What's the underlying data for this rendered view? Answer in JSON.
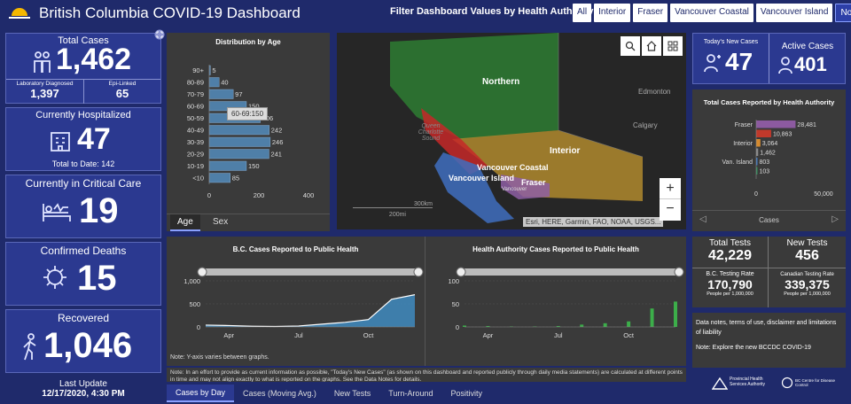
{
  "header": {
    "title": "British Columbia COVID-19 Dashboard",
    "filter_label": "Filter Dashboard Values by Health Authority:",
    "filters": [
      "All",
      "Interior",
      "Fraser",
      "Vancouver Coastal",
      "Vancouver Island",
      "Northern"
    ]
  },
  "total_cases": {
    "label": "Total Cases",
    "value": "1,462",
    "lab_label": "Laboratory Diagnosed",
    "lab_value": "1,397",
    "epi_label": "Epi-Linked",
    "epi_value": "65"
  },
  "hospitalized": {
    "label": "Currently Hospitalized",
    "value": "47",
    "sub": "Total to Date: 142"
  },
  "critical": {
    "label": "Currently in Critical Care",
    "value": "19"
  },
  "deaths": {
    "label": "Confirmed Deaths",
    "value": "15"
  },
  "recovered": {
    "label": "Recovered",
    "value": "1,046"
  },
  "update": {
    "label": "Last Update",
    "value": "12/17/2020, 4:30 PM"
  },
  "age_chart": {
    "title": "Distribution by Age",
    "tooltip": "60-69:150",
    "tabs": [
      "Age",
      "Sex"
    ],
    "chart_data": {
      "type": "bar",
      "categories": [
        "90+",
        "80-89",
        "70-79",
        "60-69",
        "50-59",
        "40-49",
        "30-39",
        "20-29",
        "10-19",
        "<10"
      ],
      "values": [
        5,
        40,
        97,
        150,
        206,
        242,
        246,
        241,
        150,
        85
      ],
      "xlim": [
        0,
        400
      ],
      "xticks": [
        "0",
        "200",
        "400"
      ]
    }
  },
  "map": {
    "labels": [
      "Northern",
      "Interior",
      "Vancouver Coastal",
      "Vancouver Island",
      "Fraser",
      "Edmonton",
      "Calgary",
      "Queen Charlotte Sound",
      "Vancouver"
    ],
    "scale": [
      "300km",
      "200mi"
    ],
    "attribution": "Esri, HERE, Garmin, FAO, NOAA, USGS..."
  },
  "new_cases": {
    "label": "Today's New Cases",
    "value": "47"
  },
  "active": {
    "label": "Active Cases",
    "value": "401"
  },
  "ha_chart": {
    "title": "Total Cases Reported by Health Authority",
    "footer": "Cases",
    "chart_data": {
      "type": "bar",
      "categories": [
        "Fraser",
        "",
        "Interior",
        "",
        "Van. Island",
        ""
      ],
      "values": [
        28481,
        10863,
        3064,
        1462,
        803,
        103
      ],
      "labels": [
        "28,481",
        "10,863",
        "3,064",
        "1,462",
        "803",
        "103"
      ],
      "colors": [
        "#8c5aa0",
        "#c0392b",
        "#d68a2e",
        "#8a8a8a",
        "#3b78c4",
        "#2e8b57"
      ],
      "xlim": [
        0,
        50000
      ],
      "xticks": [
        "0",
        "50,000"
      ]
    }
  },
  "tests": {
    "total_label": "Total Tests",
    "total_value": "42,229",
    "new_label": "New Tests",
    "new_value": "456",
    "bc_rate_label": "B.C. Testing Rate",
    "bc_rate_value": "170,790",
    "bc_rate_unit": "People per 1,000,000",
    "can_rate_label": "Canadian Testing Rate",
    "can_rate_value": "339,375",
    "can_rate_unit": "People per 1,000,000"
  },
  "notes": {
    "line1": "Data notes, terms of use, disclaimer and limitations of liability",
    "line2": "Note: Explore the new BCCDC COVID-19"
  },
  "bc_cases": {
    "title": "B.C. Cases Reported to Public Health",
    "yticks": [
      "1,000",
      "500",
      "0"
    ],
    "xticks": [
      "Apr",
      "Jul",
      "Oct"
    ],
    "chart_data": {
      "type": "area",
      "x": [
        "Mar",
        "Apr",
        "May",
        "Jun",
        "Jul",
        "Aug",
        "Sep",
        "Oct",
        "Nov",
        "Dec"
      ],
      "values": [
        40,
        30,
        15,
        10,
        20,
        60,
        100,
        160,
        600,
        700
      ],
      "ylim": [
        0,
        1000
      ]
    }
  },
  "ha_cases": {
    "title": "Health Authority Cases Reported to Public Health",
    "yticks": [
      "100",
      "50",
      "0"
    ],
    "xticks": [
      "Apr",
      "Jul",
      "Oct"
    ],
    "chart_data": {
      "type": "bar",
      "x": [
        "Mar",
        "Apr",
        "May",
        "Jun",
        "Jul",
        "Aug",
        "Sep",
        "Oct",
        "Nov",
        "Dec"
      ],
      "values": [
        3,
        2,
        1,
        1,
        2,
        5,
        8,
        12,
        40,
        55
      ],
      "ylim": [
        0,
        100
      ]
    }
  },
  "y_note": "Note: Y-axis varies between graphs.",
  "bottom_note": "Note: In an effort to provide as current information as possible, \"Today's New Cases\" (as shown on this dashboard and reported publicly through daily media statements) are calculated at different points in time and may not align exactly to what is reported on the graphs. See the Data Notes for details.",
  "bottom_tabs": [
    "Cases by Day",
    "Cases (Moving Avg.)",
    "New Tests",
    "Turn-Around",
    "Positivity"
  ],
  "logos": {
    "phsa": "Provincial Health Services Authority",
    "bccdc": "BC Centre for Disease Control"
  }
}
